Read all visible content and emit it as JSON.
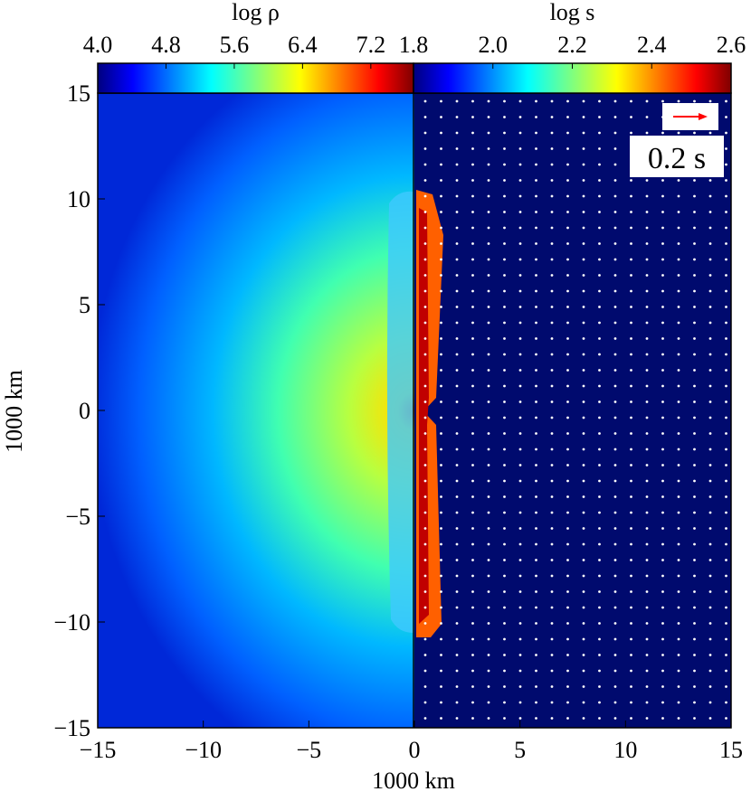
{
  "chart_data": {
    "type": "image",
    "annotation": "0.2 s",
    "xlabel": "1000 km",
    "ylabel": "1000 km",
    "xlim": [
      -15,
      15
    ],
    "xticks": [
      {
        "value": -15,
        "label": "−15"
      },
      {
        "value": -10,
        "label": "−10"
      },
      {
        "value": -5,
        "label": "−5"
      },
      0,
      5,
      10,
      15
    ],
    "ylim": [
      -15,
      15
    ],
    "yticks": [
      {
        "value": -15,
        "label": "−15"
      },
      {
        "value": -10,
        "label": "−10"
      },
      {
        "value": -5,
        "label": "−5"
      },
      0,
      5,
      10,
      15
    ],
    "colorbars": [
      {
        "label": "log ρ",
        "clim": [
          4,
          7.7
        ],
        "ticks": [
          {
            "value": 4,
            "label": "4.0"
          },
          4.8,
          5.6,
          6.4,
          7.2
        ]
      },
      {
        "label": "log s",
        "clim": [
          1.8,
          2.6
        ],
        "ticks": [
          1.8,
          {
            "value": 2,
            "label": "2.0"
          },
          2.2,
          2.4,
          2.6
        ]
      }
    ]
  }
}
